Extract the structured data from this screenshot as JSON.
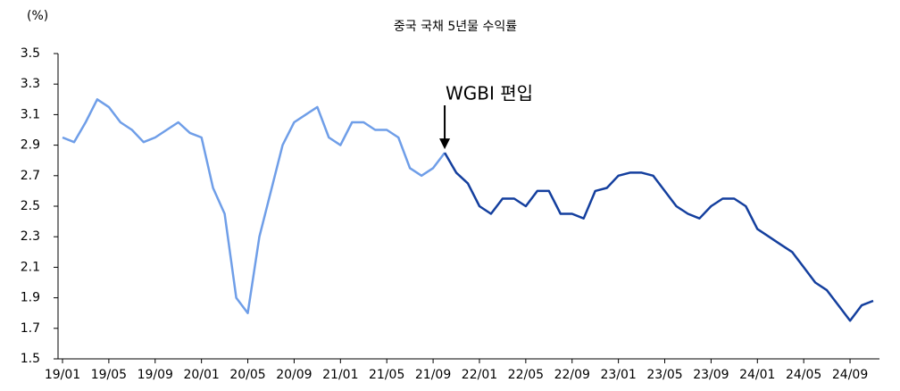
{
  "chart_data": {
    "type": "line",
    "title": "중국 국채 5년물 수익률",
    "ylabel": "(%)",
    "annotation": "WGBI 편입",
    "annotation_category": "21/10",
    "categories": [
      "19/01",
      null,
      null,
      null,
      "19/05",
      null,
      null,
      null,
      "19/09",
      null,
      null,
      null,
      "20/01",
      null,
      null,
      null,
      "20/05",
      null,
      null,
      null,
      "20/09",
      null,
      null,
      null,
      "21/01",
      null,
      null,
      null,
      "21/05",
      null,
      null,
      null,
      "21/09",
      null,
      null,
      null,
      "22/01",
      null,
      null,
      null,
      "22/05",
      null,
      null,
      null,
      "22/09",
      null,
      null,
      null,
      "23/01",
      null,
      null,
      null,
      "23/05",
      null,
      null,
      null,
      "23/09",
      null,
      null,
      null,
      "24/01",
      null,
      null,
      null,
      "24/05",
      null,
      null,
      null,
      "24/09",
      null,
      null
    ],
    "series": [
      {
        "color": "#6f9ee8",
        "values": [
          2.95,
          2.92,
          3.05,
          3.2,
          3.15,
          3.05,
          3.0,
          2.92,
          2.95,
          3.0,
          3.05,
          2.98,
          2.95,
          2.62,
          2.45,
          1.9,
          1.8,
          2.3,
          2.6,
          2.9,
          3.05,
          3.1,
          3.15,
          2.95,
          2.9,
          3.05,
          3.05,
          3.0,
          3.0,
          2.95,
          2.75,
          2.7,
          2.75,
          2.85,
          null,
          null,
          null,
          null,
          null,
          null,
          null,
          null,
          null,
          null,
          null,
          null,
          null,
          null,
          null,
          null,
          null,
          null,
          null,
          null,
          null,
          null,
          null,
          null,
          null,
          null,
          null,
          null,
          null,
          null,
          null,
          null,
          null,
          null,
          null,
          null,
          null
        ]
      },
      {
        "color": "#143f9e",
        "values": [
          null,
          null,
          null,
          null,
          null,
          null,
          null,
          null,
          null,
          null,
          null,
          null,
          null,
          null,
          null,
          null,
          null,
          null,
          null,
          null,
          null,
          null,
          null,
          null,
          null,
          null,
          null,
          null,
          null,
          null,
          null,
          null,
          null,
          2.85,
          2.72,
          2.65,
          2.5,
          2.45,
          2.55,
          2.55,
          2.5,
          2.6,
          2.6,
          2.45,
          2.45,
          2.42,
          2.6,
          2.62,
          2.7,
          2.72,
          2.72,
          2.7,
          2.6,
          2.5,
          2.45,
          2.42,
          2.5,
          2.55,
          2.55,
          2.5,
          2.35,
          2.3,
          2.25,
          2.2,
          2.1,
          2.0,
          1.95,
          1.85,
          1.75,
          1.85,
          1.88
        ]
      }
    ],
    "ylim": [
      1.5,
      3.5
    ],
    "yticks": [
      1.5,
      1.7,
      1.9,
      2.1,
      2.3,
      2.5,
      2.7,
      2.9,
      3.1,
      3.3,
      3.5
    ],
    "grid": false
  }
}
